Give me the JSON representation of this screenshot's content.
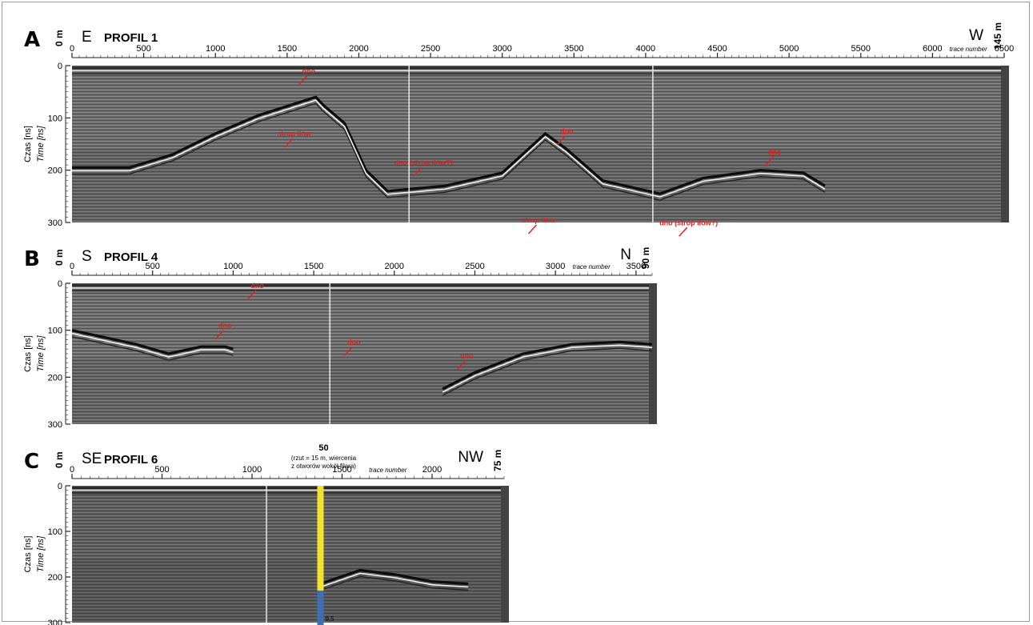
{
  "panels": [
    {
      "letter": "A",
      "title": "PROFIL 1",
      "start_dist": "0 m",
      "end_dist": "145 m",
      "dir_left": "E",
      "dir_right": "W",
      "trace_label": "trace number",
      "trace_max": 6500,
      "trace_ticks": [
        "0",
        "500",
        "1000",
        "1500",
        "2000",
        "2500",
        "3000",
        "3500",
        "4000",
        "4500",
        "5000",
        "5500",
        "6000",
        "6500"
      ],
      "time_ticks": [
        "0",
        "100",
        "200",
        "300"
      ],
      "axis_label_pl": "Czas [ns]",
      "axis_label_en": "Time [ns]",
      "marker_traces": [
        2350,
        4050
      ],
      "annotations": [
        {
          "text": "dno",
          "trace": 1650,
          "time": 15
        },
        {
          "text": "strop iłów",
          "trace": 1550,
          "time": 135
        },
        {
          "text": "dno (strop iłów?)",
          "trace": 2450,
          "time": 190
        },
        {
          "text": "dno",
          "trace": 3450,
          "time": 130
        },
        {
          "text": "strop iłów",
          "trace": 3250,
          "time": 300
        },
        {
          "text": "dno (strop iłów?)",
          "trace": 4300,
          "time": 305
        },
        {
          "text": "dno",
          "trace": 4900,
          "time": 170
        }
      ]
    },
    {
      "letter": "B",
      "title": "PROFIL 4",
      "start_dist": "0 m",
      "end_dist": "90 m",
      "dir_left": "S",
      "dir_right": "N",
      "trace_label": "trace number",
      "trace_max": 3600,
      "trace_ticks": [
        "0",
        "500",
        "1000",
        "1500",
        "2000",
        "2500",
        "3000",
        "3500"
      ],
      "time_ticks": [
        "0",
        "100",
        "200",
        "300"
      ],
      "axis_label_pl": "Czas [ns]",
      "axis_label_en": "Time [ns]",
      "marker_traces": [
        1600
      ],
      "annotations": [
        {
          "text": "dno",
          "trace": 1150,
          "time": 10
        },
        {
          "text": "dno",
          "trace": 950,
          "time": 95
        },
        {
          "text": "dno",
          "trace": 1750,
          "time": 130
        },
        {
          "text": "dno",
          "trace": 2450,
          "time": 160
        }
      ]
    },
    {
      "letter": "C",
      "title": "PROFIL 6",
      "start_dist": "0 m",
      "end_dist": "75 m",
      "dir_left": "SE",
      "dir_right": "NW",
      "trace_label": "trace number",
      "trace_max": 2400,
      "trace_ticks": [
        "0",
        "500",
        "1000",
        "1500",
        "2000"
      ],
      "time_ticks": [
        "0",
        "100",
        "200",
        "300"
      ],
      "axis_label_pl": "Czas [ns]",
      "axis_label_en": "Time [ns]",
      "marker_traces": [
        1080
      ],
      "borehole": {
        "number": "50",
        "note_line1": "(rzut = 15 m, wiercenia",
        "note_line2": "z otworów wokół filara)",
        "trace": 1380,
        "bottom_label": "9,5",
        "colors": {
          "upper": "#f2e22b",
          "lower": "#3d6fb5"
        }
      }
    }
  ],
  "colors": {
    "annotation": "#e0201e",
    "radargram_bg": "#6e6e6e"
  }
}
